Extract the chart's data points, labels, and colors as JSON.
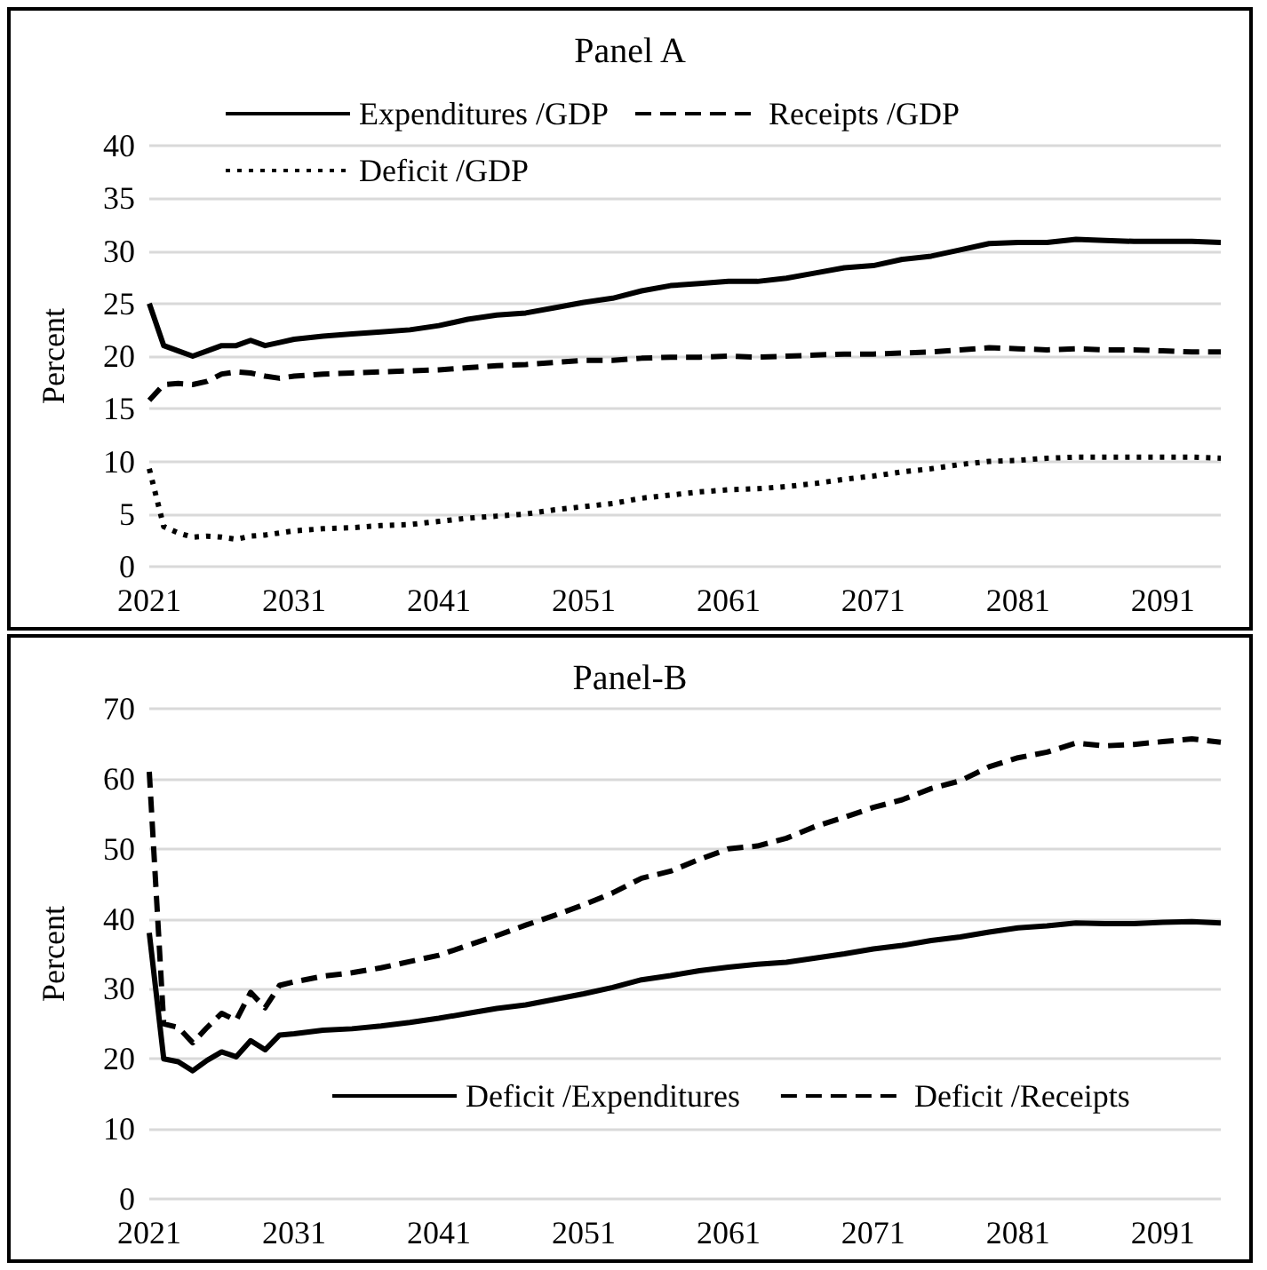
{
  "chart_data": [
    {
      "type": "line",
      "title": "Panel A",
      "ylabel": "Percent",
      "xlim": [
        2021,
        2095
      ],
      "xticks": [
        2021,
        2031,
        2041,
        2051,
        2061,
        2071,
        2081,
        2091
      ],
      "ylim": [
        0,
        40
      ],
      "yticks": [
        0,
        5,
        10,
        15,
        20,
        25,
        30,
        35,
        40
      ],
      "grid": "y",
      "legend": "top",
      "marker": "none",
      "x": [
        2021,
        2022,
        2023,
        2024,
        2025,
        2026,
        2027,
        2028,
        2029,
        2030,
        2031,
        2033,
        2035,
        2037,
        2039,
        2041,
        2043,
        2045,
        2047,
        2049,
        2051,
        2053,
        2055,
        2057,
        2059,
        2061,
        2063,
        2065,
        2067,
        2069,
        2071,
        2073,
        2075,
        2077,
        2079,
        2081,
        2083,
        2085,
        2087,
        2089,
        2091,
        2093,
        2095
      ],
      "series": [
        {
          "name": "Expenditures /GDP",
          "color": "#000000",
          "line_style": "solid",
          "values": [
            25,
            21,
            20.5,
            20,
            20.5,
            21,
            21,
            21.5,
            21,
            21.3,
            21.6,
            21.9,
            22.1,
            22.3,
            22.5,
            22.9,
            23.5,
            23.9,
            24.1,
            24.6,
            25.1,
            25.5,
            26.2,
            26.7,
            26.9,
            27.1,
            27.1,
            27.4,
            27.9,
            28.4,
            28.6,
            29.2,
            29.5,
            30.1,
            30.7,
            30.8,
            30.8,
            31.1,
            31.0,
            30.9,
            30.9,
            30.9,
            30.8
          ]
        },
        {
          "name": "Receipts /GDP",
          "color": "#000000",
          "line_style": "dashed",
          "values": [
            15.8,
            17.3,
            17.4,
            17.3,
            17.6,
            18.3,
            18.5,
            18.4,
            18.1,
            17.9,
            18.1,
            18.3,
            18.4,
            18.5,
            18.6,
            18.7,
            18.9,
            19.1,
            19.2,
            19.4,
            19.6,
            19.6,
            19.8,
            19.9,
            19.9,
            20,
            19.9,
            20,
            20.1,
            20.2,
            20.2,
            20.3,
            20.4,
            20.6,
            20.8,
            20.7,
            20.6,
            20.7,
            20.6,
            20.6,
            20.5,
            20.4,
            20.4
          ]
        },
        {
          "name": "Deficit /GDP",
          "color": "#000000",
          "line_style": "dotted",
          "values": [
            9.3,
            3.8,
            3.2,
            2.8,
            2.9,
            2.8,
            2.6,
            2.9,
            3.0,
            3.2,
            3.4,
            3.6,
            3.7,
            3.9,
            4.0,
            4.3,
            4.6,
            4.8,
            5.0,
            5.4,
            5.7,
            6.0,
            6.5,
            6.8,
            7.1,
            7.3,
            7.4,
            7.6,
            7.9,
            8.3,
            8.6,
            9.0,
            9.3,
            9.7,
            10.0,
            10.1,
            10.3,
            10.4,
            10.4,
            10.4,
            10.4,
            10.4,
            10.3
          ]
        }
      ]
    },
    {
      "type": "line",
      "title": "Panel-B",
      "ylabel": "Percent",
      "xlim": [
        2021,
        2095
      ],
      "xticks": [
        2021,
        2031,
        2041,
        2051,
        2061,
        2071,
        2081,
        2091
      ],
      "ylim": [
        0,
        70
      ],
      "yticks": [
        0,
        10,
        20,
        30,
        40,
        50,
        60,
        70
      ],
      "grid": "y",
      "legend": "bottom",
      "marker": "none",
      "x": [
        2021,
        2022,
        2023,
        2024,
        2025,
        2026,
        2027,
        2028,
        2029,
        2030,
        2031,
        2033,
        2035,
        2037,
        2039,
        2041,
        2043,
        2045,
        2047,
        2049,
        2051,
        2053,
        2055,
        2057,
        2059,
        2061,
        2063,
        2065,
        2067,
        2069,
        2071,
        2073,
        2075,
        2077,
        2079,
        2081,
        2083,
        2085,
        2087,
        2089,
        2091,
        2093,
        2095
      ],
      "series": [
        {
          "name": "Deficit /Expenditures",
          "color": "#000000",
          "line_style": "solid",
          "values": [
            38,
            20,
            19.6,
            18.3,
            19.8,
            21,
            20.3,
            22.6,
            21.3,
            23.4,
            23.6,
            24.1,
            24.3,
            24.7,
            25.2,
            25.8,
            26.5,
            27.2,
            27.7,
            28.5,
            29.3,
            30.2,
            31.3,
            31.9,
            32.6,
            33.1,
            33.5,
            33.8,
            34.4,
            35.0,
            35.7,
            36.2,
            36.9,
            37.4,
            38.1,
            38.7,
            39.0,
            39.4,
            39.3,
            39.3,
            39.5,
            39.6,
            39.4
          ]
        },
        {
          "name": "Deficit /Receipts",
          "color": "#000000",
          "line_style": "dashed",
          "values": [
            61,
            25,
            24.5,
            22.3,
            24.5,
            26.5,
            25.5,
            29.5,
            27.3,
            30.5,
            31,
            31.8,
            32.3,
            33,
            33.9,
            34.8,
            36.2,
            37.6,
            39.1,
            40.5,
            42,
            43.7,
            45.8,
            46.8,
            48.5,
            50,
            50.4,
            51.5,
            53.2,
            54.5,
            55.9,
            57,
            58.6,
            59.7,
            61.7,
            63,
            63.8,
            65.1,
            64.7,
            64.9,
            65.3,
            65.7,
            65.2
          ]
        }
      ]
    }
  ]
}
